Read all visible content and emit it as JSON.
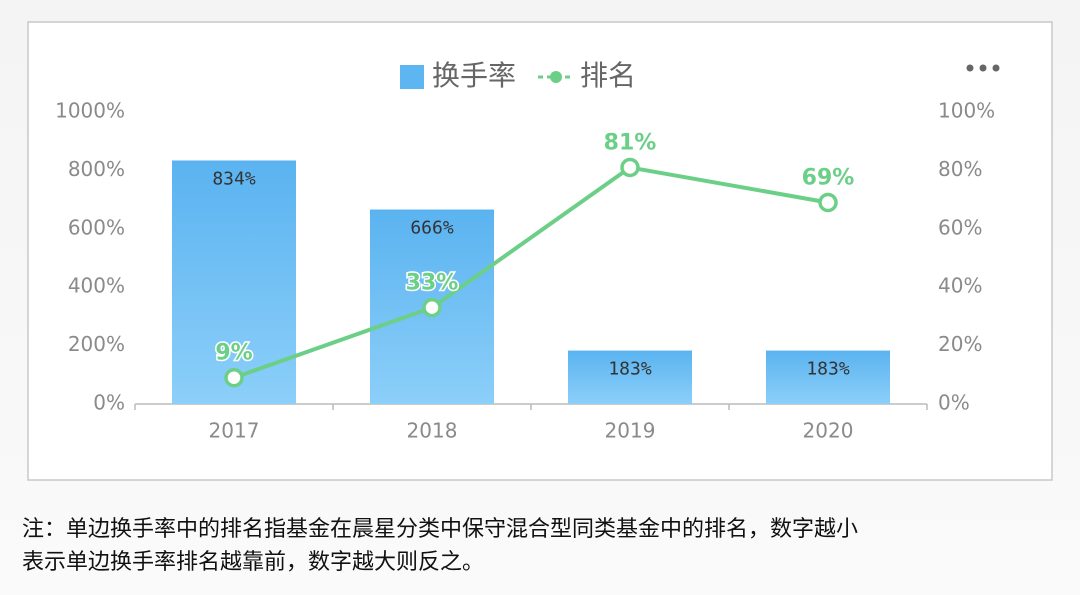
{
  "chart_data": {
    "type": "bar",
    "categories": [
      "2017",
      "2018",
      "2019",
      "2020"
    ],
    "series": [
      {
        "name": "换手率",
        "type": "bar",
        "color": "#5db6f1",
        "values": [
          834,
          666,
          183,
          183
        ],
        "value_labels": [
          "834%",
          "666%",
          "183%",
          "183%"
        ]
      },
      {
        "name": "排名",
        "type": "line",
        "axis": "y2",
        "color": "#6ccf87",
        "values": [
          9,
          33,
          81,
          69
        ],
        "value_labels": [
          "9%",
          "33%",
          "81%",
          "69%"
        ]
      }
    ],
    "ylim": [
      0,
      1000
    ],
    "yticks": [
      {
        "value": 0,
        "label": "0%"
      },
      {
        "value": 200,
        "label": "200%"
      },
      {
        "value": 400,
        "label": "400%"
      },
      {
        "value": 600,
        "label": "600%"
      },
      {
        "value": 800,
        "label": "800%"
      },
      {
        "value": 1000,
        "label": "1000%"
      }
    ],
    "y2lim": [
      0,
      100
    ],
    "y2ticks": [
      {
        "value": 0,
        "label": "0%"
      },
      {
        "value": 20,
        "label": "20%"
      },
      {
        "value": 40,
        "label": "40%"
      },
      {
        "value": 60,
        "label": "60%"
      },
      {
        "value": 80,
        "label": "80%"
      },
      {
        "value": 100,
        "label": "100%"
      }
    ],
    "grid": false,
    "legend": "top"
  },
  "note": [
    "注：单边换手率中的排名指基金在晨星分类中保守混合型同类基金中的排名，数字越小",
    "表示单边换手率排名越靠前，数字越大则反之。"
  ]
}
